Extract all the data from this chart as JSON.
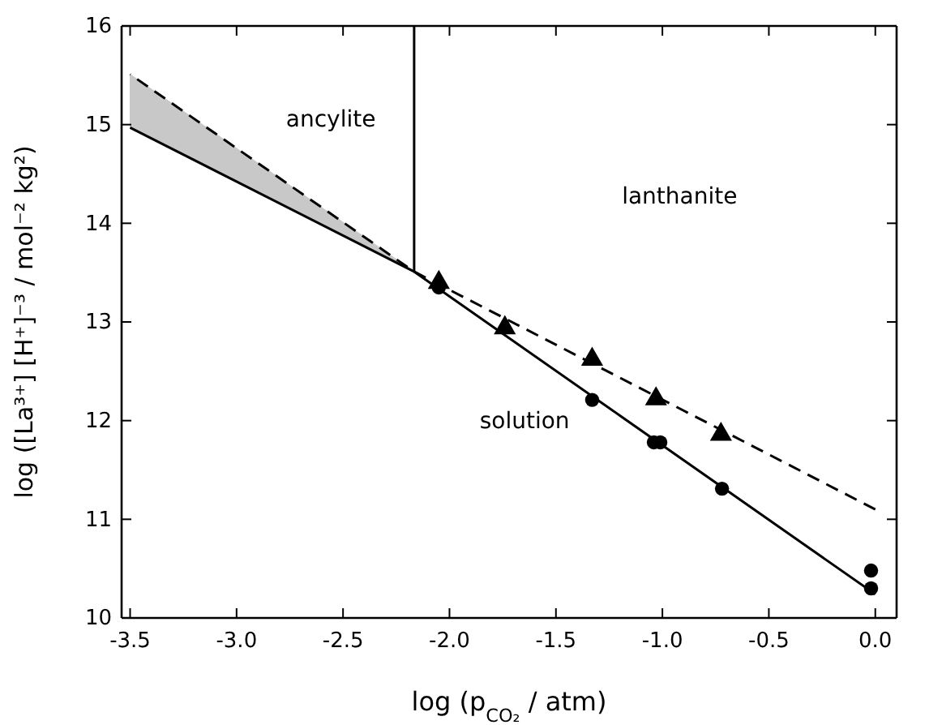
{
  "chart_data": {
    "type": "line",
    "xlabel": "log (p$_{CO₂}$ / atm)",
    "ylabel": "log ([La³⁺] [H⁺]⁻³ / mol⁻² kg²)",
    "xlim": [
      -3.54,
      0.1
    ],
    "ylim": [
      10,
      16
    ],
    "xticks": [
      {
        "value": -3.5,
        "label": "-3.5"
      },
      {
        "value": -3.0,
        "label": "-3.0"
      },
      {
        "value": -2.5,
        "label": "-2.5"
      },
      {
        "value": -2.0,
        "label": "-2.0"
      },
      {
        "value": -1.5,
        "label": "-1.5"
      },
      {
        "value": -1.0,
        "label": "-1.0"
      },
      {
        "value": -0.5,
        "label": "-0.5"
      },
      {
        "value": 0,
        "label": "0.0"
      }
    ],
    "yticks": [
      10,
      11,
      12,
      13,
      14,
      15,
      16
    ],
    "grid": false,
    "series": [
      {
        "color": "#000000",
        "line_style": "dashed",
        "marker": "none",
        "x": [
          -3.5,
          -2.166,
          0
        ],
        "values": [
          15.51,
          13.51,
          11.1
        ],
        "lower": [
          14.97,
          13.51,
          null
        ],
        "upper": [
          15.51,
          13.51,
          null
        ]
      },
      {
        "color": "#000000",
        "line_style": "solid",
        "marker": "none",
        "x": [
          -3.5,
          -2.166,
          0
        ],
        "values": [
          14.97,
          13.51,
          10.24
        ]
      },
      {
        "color": "#000000",
        "line_style": "solid",
        "marker": "none",
        "x": [
          -2.166,
          -2.166
        ],
        "values": [
          13.51,
          16
        ]
      },
      {
        "type": "scatter",
        "color": "#000000",
        "marker": "triangle",
        "x": [
          -2.05,
          -1.74,
          -1.33,
          -1.03,
          -0.725
        ],
        "values": [
          13.4,
          12.94,
          12.62,
          12.22,
          11.86
        ]
      },
      {
        "type": "scatter",
        "color": "#000000",
        "marker": "circle",
        "x": [
          -2.05,
          -1.33,
          -1.04,
          -1.01,
          -0.72,
          -0.02,
          -0.02
        ],
        "values": [
          13.35,
          12.21,
          11.78,
          11.78,
          11.31,
          10.48,
          10.3
        ]
      }
    ],
    "annotations": [
      "ancylite",
      "lanthanite",
      "solution"
    ]
  }
}
